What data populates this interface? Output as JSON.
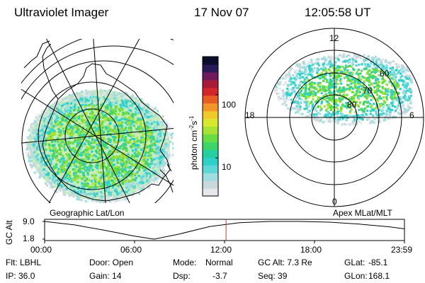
{
  "header": {
    "title": "Ultraviolet Imager",
    "date": "17 Nov 07",
    "time": "12:05:58 UT"
  },
  "colorbar": {
    "unit_label": "photon cm-2s-1",
    "ticks": [
      {
        "label": "100",
        "value": 100
      },
      {
        "label": "10",
        "value": 10
      }
    ],
    "colors": [
      "#e4e8ea",
      "#c8d8dc",
      "#9edde0",
      "#5fd6d6",
      "#2fd0c8",
      "#24cfa0",
      "#3fd46a",
      "#69dc44",
      "#a8e235",
      "#d8e82e",
      "#f1c92b",
      "#f0962b",
      "#e85d25",
      "#d2262a",
      "#a81a3a",
      "#6e1a5c",
      "#2b1a5a",
      "#0b0b2a"
    ],
    "range": [
      2.5,
      400
    ]
  },
  "left_map": {
    "caption": "Geographic Lat/Lon"
  },
  "right_map": {
    "caption": "Apex MLat/MLT",
    "mlt_labels": {
      "top": "12",
      "left": "18",
      "right": "6",
      "bottom": "0"
    },
    "lat_labels": [
      "60",
      "70",
      "80"
    ]
  },
  "alt_plot": {
    "ylabel": "GC Alt",
    "y_ticks": [
      "9.0",
      "1.8"
    ],
    "x_ticks": [
      "00:00",
      "06:00",
      "12:00",
      "18:00",
      "23:59"
    ],
    "marker_time_hours": 12.1,
    "series_hours": [
      0,
      2,
      4,
      6,
      7.3,
      9,
      11,
      13,
      15,
      17,
      19,
      21,
      23,
      24
    ],
    "series_values": [
      9.0,
      7.6,
      5.4,
      3.0,
      1.8,
      3.9,
      6.9,
      8.5,
      9.0,
      9.0,
      8.7,
      7.9,
      6.8,
      6.0
    ]
  },
  "info": {
    "filter": "Flt: LBHL",
    "door": "Door: Open",
    "mode_label": "Mode:",
    "mode_value": "Normal",
    "gc_alt": "GC Alt: 7.3 Re",
    "glat_label": "GLat:",
    "glat_value": "-85.1",
    "ip": "IP: 36.0",
    "gain": "Gain: 14",
    "dsp_label": "Dsp:",
    "dsp_value": "-3.7",
    "seq": "Seq: 39",
    "glon_label": "GLon:",
    "glon_value": "168.1"
  }
}
